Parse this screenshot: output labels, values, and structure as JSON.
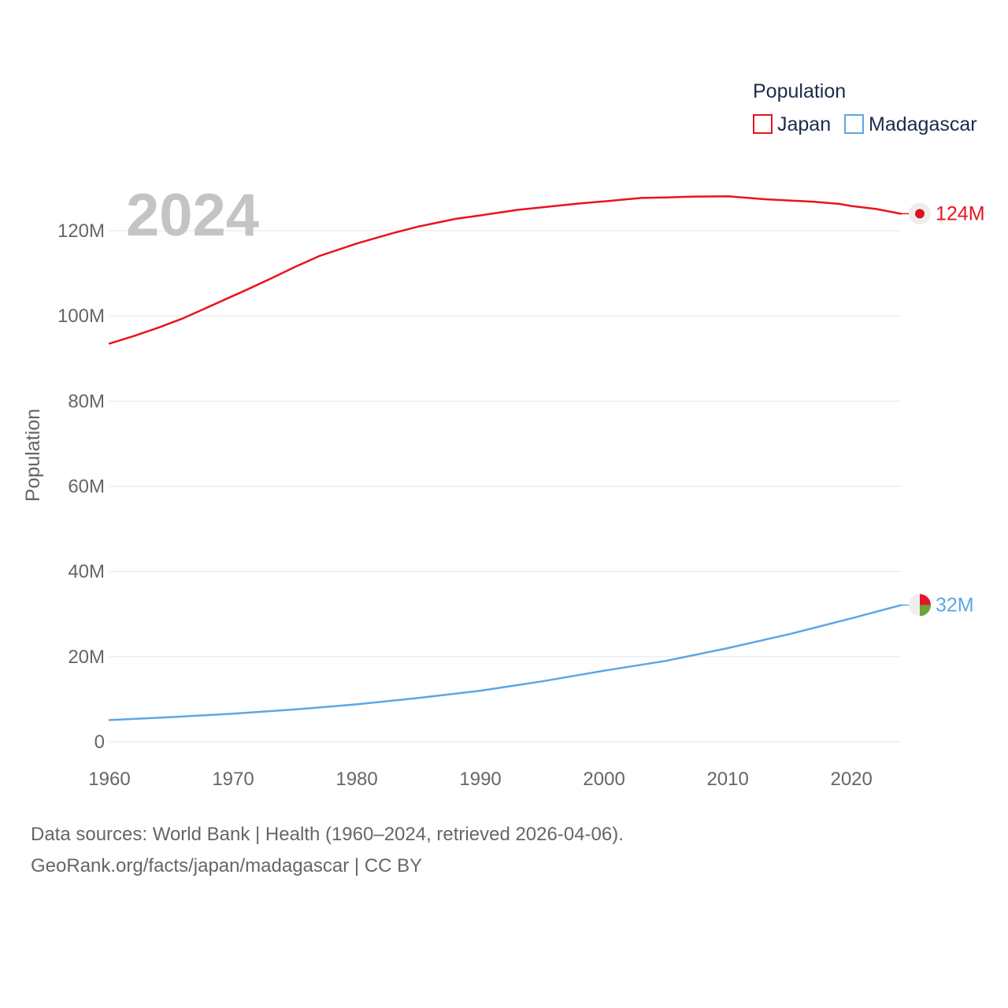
{
  "chart_data": {
    "type": "line",
    "year_label": "2024",
    "ylabel": "Population",
    "ylim": [
      0,
      130000000
    ],
    "xlim": [
      1960,
      2024
    ],
    "y_ticks": [
      {
        "value": 0,
        "label": "0"
      },
      {
        "value": 20000000,
        "label": "20M"
      },
      {
        "value": 40000000,
        "label": "40M"
      },
      {
        "value": 60000000,
        "label": "60M"
      },
      {
        "value": 80000000,
        "label": "80M"
      },
      {
        "value": 100000000,
        "label": "100M"
      },
      {
        "value": 120000000,
        "label": "120M"
      }
    ],
    "x_ticks": [
      {
        "value": 1960,
        "label": "1960"
      },
      {
        "value": 1970,
        "label": "1970"
      },
      {
        "value": 1980,
        "label": "1980"
      },
      {
        "value": 1990,
        "label": "1990"
      },
      {
        "value": 2000,
        "label": "2000"
      },
      {
        "value": 2010,
        "label": "2010"
      },
      {
        "value": 2020,
        "label": "2020"
      }
    ],
    "legend": {
      "title": "Population",
      "position": "top-right"
    },
    "series": [
      {
        "name": "Japan",
        "color": "#e8141e",
        "end_label": "124M",
        "icon": "japan-flag-icon",
        "x": [
          1960,
          1962,
          1964,
          1966,
          1968,
          1970,
          1971,
          1973,
          1975,
          1977,
          1980,
          1983,
          1985,
          1988,
          1990,
          1993,
          1995,
          1998,
          2000,
          2003,
          2005,
          2007,
          2010,
          2013,
          2015,
          2017,
          2019,
          2020,
          2022,
          2024
        ],
        "values": [
          93500000,
          95300000,
          97300000,
          99500000,
          102100000,
          104700000,
          106000000,
          108700000,
          111500000,
          114100000,
          117000000,
          119500000,
          121000000,
          122800000,
          123600000,
          124900000,
          125500000,
          126400000,
          126900000,
          127700000,
          127800000,
          128000000,
          128100000,
          127400000,
          127100000,
          126800000,
          126300000,
          125800000,
          125100000,
          124000000
        ]
      },
      {
        "name": "Madagascar",
        "color": "#5ea6e2",
        "end_label": "32M",
        "icon": "madagascar-flag-icon",
        "x": [
          1960,
          1965,
          1970,
          1975,
          1980,
          1985,
          1990,
          1995,
          2000,
          2005,
          2010,
          2015,
          2020,
          2024
        ],
        "values": [
          5100000,
          5800000,
          6600000,
          7600000,
          8800000,
          10300000,
          12000000,
          14200000,
          16700000,
          19000000,
          22000000,
          25300000,
          29000000,
          32100000
        ]
      }
    ]
  },
  "footer": {
    "line1": "Data sources: World Bank | Health (1960–2024, retrieved 2026-04-06).",
    "line2": "GeoRank.org/facts/japan/madagascar | CC BY"
  }
}
